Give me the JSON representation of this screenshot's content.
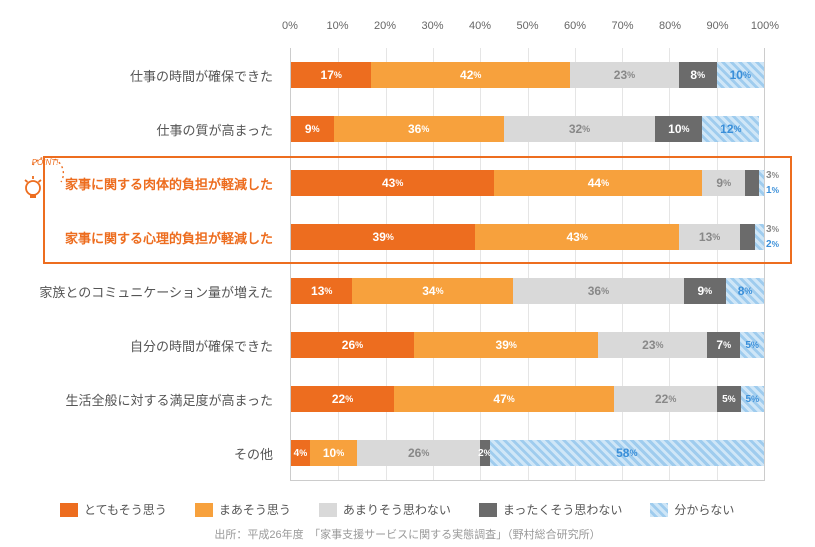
{
  "axis": {
    "ticks": [
      "0%",
      "10%",
      "20%",
      "30%",
      "40%",
      "50%",
      "60%",
      "70%",
      "80%",
      "90%",
      "100%"
    ]
  },
  "series": [
    "とてもそう思う",
    "まあそう思う",
    "あまりそう思わない",
    "まったくそう思わない",
    "分からない"
  ],
  "colors": {
    "s0": "#ed6d1f",
    "s1": "#f7a13d",
    "s2": "#d9d9d9",
    "s3": "#6b6b6b",
    "s4_a": "#cfe6f7",
    "s4_b": "#9fccee",
    "label": "#555",
    "hi": "#ed6d1f",
    "grid": "#e5e5e5",
    "text_s4": "#3a8fd9"
  },
  "highlight": {
    "start": 2,
    "end": 3
  },
  "rows": [
    {
      "label": "仕事の時間が確保できた",
      "v": [
        17,
        42,
        23,
        8,
        10
      ]
    },
    {
      "label": "仕事の質が高まった",
      "v": [
        9,
        36,
        32,
        10,
        12
      ]
    },
    {
      "label": "家事に関する肉体的負担が軽減した",
      "v": [
        43,
        44,
        9,
        3,
        1
      ],
      "hi": true,
      "tiny": [
        3,
        4
      ]
    },
    {
      "label": "家事に関する心理的負担が軽減した",
      "v": [
        39,
        43,
        13,
        3,
        2
      ],
      "hi": true,
      "tiny": [
        3,
        4
      ]
    },
    {
      "label": "家族とのコミュニケーション量が増えた",
      "v": [
        13,
        34,
        36,
        9,
        8
      ]
    },
    {
      "label": "自分の時間が確保できた",
      "v": [
        26,
        39,
        23,
        7,
        5
      ]
    },
    {
      "label": "生活全般に対する満足度が高まった",
      "v": [
        22,
        47,
        22,
        5,
        5
      ]
    },
    {
      "label": "その他",
      "v": [
        4,
        10,
        26,
        2,
        58
      ]
    }
  ],
  "source": "出所：平成26年度　「家事支援サービスに関する実態調査」（野村総合研究所）",
  "point_label": "POINT!"
}
